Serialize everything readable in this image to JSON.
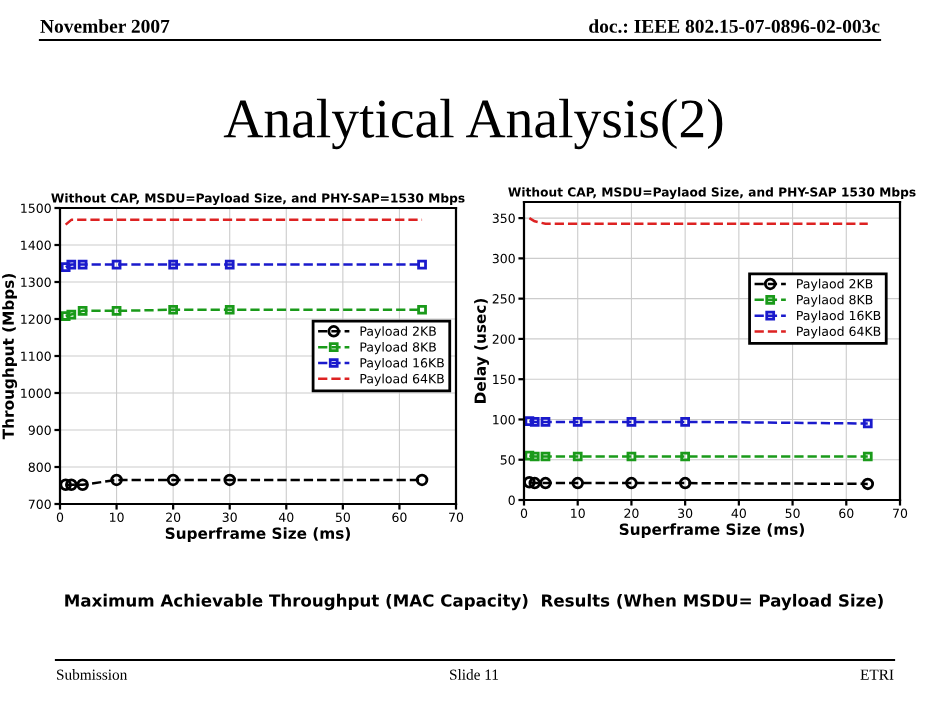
{
  "chart_data": [
    {
      "type": "line",
      "title": "Without CAP, MSDU=Payload Size, and PHY-SAP=1530 Mbps",
      "xlabel": "Superframe Size (ms)",
      "ylabel": "Throughput (Mbps)",
      "annotations": [
        "November 2007",
        "doc.: IEEE 802.15-07-0896-02-003c",
        "Analytical Analysis(2)",
        "Maximum Achievable Throughput (MAC Capacity)  Results (When MSDU= Payload Size)",
        "Submission",
        "Slide 11",
        "ETRI"
      ],
      "x": [
        1,
        2,
        4,
        10,
        20,
        30,
        64
      ],
      "series": [
        {
          "name": "Payload 2KB",
          "color": "#000000",
          "marker": "circle",
          "values": [
            752,
            752,
            752,
            765,
            765,
            765,
            765
          ]
        },
        {
          "name": "Payload 8KB",
          "color": "#1a9a1a",
          "marker": "square",
          "values": [
            1208,
            1212,
            1222,
            1222,
            1225,
            1225,
            1225
          ]
        },
        {
          "name": "Payload 16KB",
          "color": "#1a1acc",
          "marker": "square",
          "values": [
            1340,
            1347,
            1347,
            1347,
            1347,
            1347,
            1347
          ]
        },
        {
          "name": "Payload 64KB",
          "color": "#dd2222",
          "marker": "none",
          "values": [
            1455,
            1468,
            1468,
            1468,
            1468,
            1468,
            1468
          ]
        }
      ],
      "xlim": [
        0,
        70
      ],
      "xticks": [
        0,
        10,
        20,
        30,
        40,
        50,
        60,
        70
      ],
      "ylim": [
        700,
        1500
      ],
      "yticks": [
        700,
        800,
        900,
        1000,
        1100,
        1200,
        1300,
        1400,
        1500
      ],
      "grid": true,
      "legend": "right",
      "line_style": "dashed"
    },
    {
      "type": "line",
      "title": "Without CAP, MSDU=Paylaod Size, and PHY-SAP 1530 Mbps",
      "xlabel": "Superframe Size (ms)",
      "ylabel": "Delay (usec)",
      "x": [
        1,
        2,
        4,
        10,
        20,
        30,
        64
      ],
      "series": [
        {
          "name": "Paylaod 2KB",
          "color": "#000000",
          "marker": "circle",
          "values": [
            22,
            21,
            21,
            21,
            21,
            21,
            20
          ]
        },
        {
          "name": "Paylaod 8KB",
          "color": "#1a9a1a",
          "marker": "square",
          "values": [
            55,
            54,
            54,
            54,
            54,
            54,
            54
          ]
        },
        {
          "name": "Paylaod 16KB",
          "color": "#1a1acc",
          "marker": "square",
          "values": [
            98,
            97,
            97,
            97,
            97,
            97,
            95
          ]
        },
        {
          "name": "Paylaod 64KB",
          "color": "#dd2222",
          "marker": "none",
          "values": [
            350,
            346,
            343,
            343,
            343,
            343,
            343
          ]
        }
      ],
      "xlim": [
        0,
        70
      ],
      "xticks": [
        0,
        10,
        20,
        30,
        40,
        50,
        60,
        70
      ],
      "ylim": [
        0,
        370
      ],
      "yticks": [
        0,
        50,
        100,
        150,
        200,
        250,
        300,
        350
      ],
      "grid": true,
      "legend": "top right",
      "line_style": "dashed"
    }
  ]
}
